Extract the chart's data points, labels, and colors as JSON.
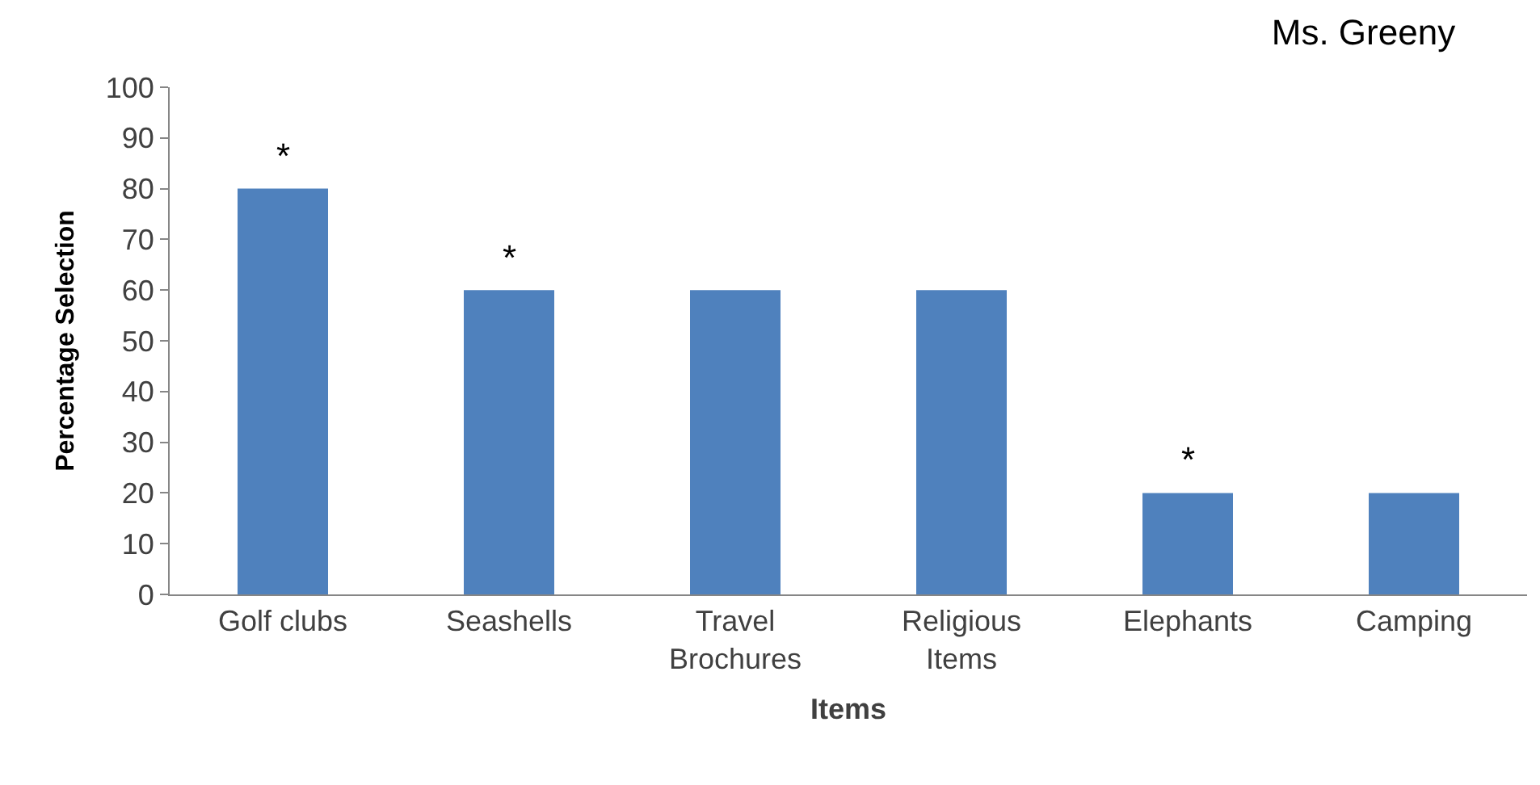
{
  "chart_data": {
    "type": "bar",
    "title": "Ms. Greeny",
    "xlabel": "Items",
    "ylabel": "Percentage Selection",
    "categories": [
      "Golf clubs",
      "Seashells",
      "Travel Brochures",
      "Religious Items",
      "Elephants",
      "Camping"
    ],
    "values": [
      80,
      60,
      60,
      60,
      20,
      20
    ],
    "color": "#4f81bd",
    "ylim": [
      0,
      100
    ],
    "yticks": [
      0,
      10,
      20,
      30,
      40,
      50,
      60,
      70,
      80,
      90,
      100
    ],
    "legend": false,
    "annotations": [
      {
        "text": "*",
        "x": "Golf clubs",
        "y": 80
      },
      {
        "text": "*",
        "x": "Seashells",
        "y": 60
      },
      {
        "text": "*",
        "x": "Elephants",
        "y": 20
      }
    ]
  }
}
